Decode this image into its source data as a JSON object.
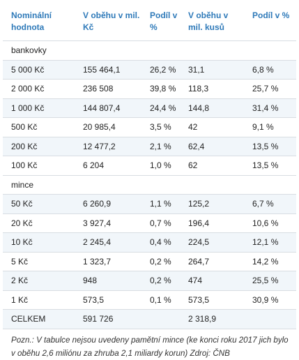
{
  "headers": [
    "Nominální hodnota",
    "V oběhu v mil. Kč",
    "Podíl v %",
    "V oběhu v mil. kusů",
    "Podíl v %"
  ],
  "sections": [
    {
      "label": "bankovky",
      "rows": [
        [
          "5 000 Kč",
          "155 464,1",
          "26,2 %",
          "31,1",
          "6,8 %"
        ],
        [
          "2 000 Kč",
          "236 508",
          "39,8 %",
          "118,3",
          "25,7 %"
        ],
        [
          "1 000 Kč",
          "144 807,4",
          "24,4 %",
          "144,8",
          "31,4 %"
        ],
        [
          "500 Kč",
          "20 985,4",
          "3,5 %",
          "42",
          "9,1 %"
        ],
        [
          "200 Kč",
          "12 477,2",
          "2,1 %",
          "62,4",
          "13,5 %"
        ],
        [
          "100 Kč",
          "6 204",
          "1,0 %",
          "62",
          "13,5 %"
        ]
      ]
    },
    {
      "label": "mince",
      "rows": [
        [
          "50 Kč",
          "6 260,9",
          "1,1 %",
          "125,2",
          "6,7 %"
        ],
        [
          "20 Kč",
          "3 927,4",
          "0,7 %",
          "196,4",
          "10,6 %"
        ],
        [
          "10 Kč",
          "2 245,4",
          "0,4 %",
          "224,5",
          "12,1 %"
        ],
        [
          "5 Kč",
          "1 323,7",
          "0,2 %",
          "264,7",
          "14,2 %"
        ],
        [
          "2 Kč",
          "948",
          "0,2 %",
          "474",
          "25,5 %"
        ],
        [
          "1 Kč",
          "573,5",
          "0,1 %",
          "573,5",
          "30,9 %"
        ]
      ]
    }
  ],
  "total": [
    "CELKEM",
    "591 726",
    "",
    "2 318,9",
    ""
  ],
  "note": "Pozn.: V tabulce nejsou uvedeny pamětní mince (ke konci roku 2017 jich bylo v oběhu 2,6 miliónu za zhruba 2,1 miliardy korun)  Zdroj: ČNB"
}
